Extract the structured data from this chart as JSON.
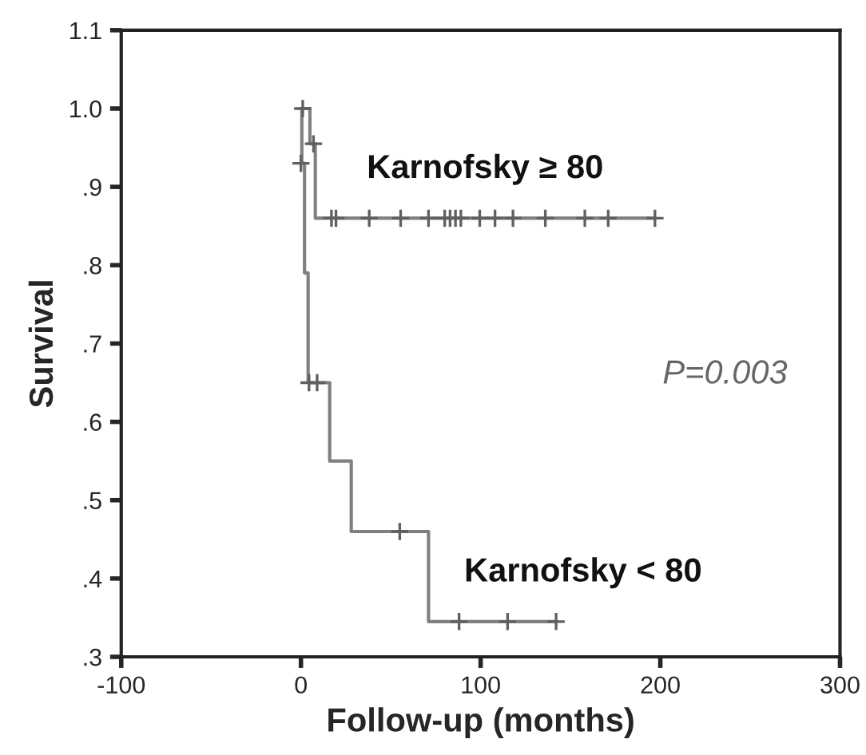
{
  "chart_data": {
    "type": "step",
    "xlabel": "Follow-up (months)",
    "ylabel": "Survival",
    "xlim": [
      -100,
      300
    ],
    "xticks": [
      -100,
      0,
      100,
      200,
      300
    ],
    "ylim": [
      0.3,
      1.1
    ],
    "yticks": [
      {
        "value": 0.3,
        "label": ".3"
      },
      {
        "value": 0.4,
        "label": ".4"
      },
      {
        "value": 0.5,
        "label": ".5"
      },
      {
        "value": 0.6,
        "label": ".6"
      },
      {
        "value": 0.7,
        "label": ".7"
      },
      {
        "value": 0.8,
        "label": ".8"
      },
      {
        "value": 0.9,
        "label": ".9"
      },
      {
        "value": 1.0,
        "label": "1.0"
      },
      {
        "value": 1.1,
        "label": "1.1"
      }
    ],
    "grid": false,
    "legend": false,
    "series": [
      {
        "name": "Karnofsky ≥ 80",
        "color": "#808080",
        "x": [
          0,
          5,
          8,
          197
        ],
        "values": [
          1.0,
          0.955,
          0.86,
          0.86
        ]
      },
      {
        "name": "Karnofsky < 80",
        "color": "#808080",
        "x": [
          0,
          0.5,
          2,
          4,
          16,
          28,
          71,
          142
        ],
        "values": [
          1.0,
          0.93,
          0.79,
          0.65,
          0.55,
          0.46,
          0.345,
          0.345
        ]
      },
      {
        "type": "scatter",
        "marker": "cross",
        "color": "#606060",
        "x": [
          1,
          7,
          17,
          19.5,
          38,
          55.5,
          71,
          80,
          83,
          86,
          89,
          99.5,
          108,
          118,
          136,
          158,
          171,
          197
        ],
        "values": [
          1.0,
          0.955,
          0.86,
          0.86,
          0.86,
          0.86,
          0.86,
          0.86,
          0.86,
          0.86,
          0.86,
          0.86,
          0.86,
          0.86,
          0.86,
          0.86,
          0.86,
          0.86
        ]
      },
      {
        "type": "scatter",
        "marker": "cross",
        "color": "#606060",
        "x": [
          0,
          4.5,
          9,
          55,
          88,
          115,
          142
        ],
        "values": [
          0.93,
          0.65,
          0.65,
          0.46,
          0.345,
          0.345,
          0.345
        ]
      }
    ],
    "annotations": [
      "P=0.003"
    ]
  }
}
